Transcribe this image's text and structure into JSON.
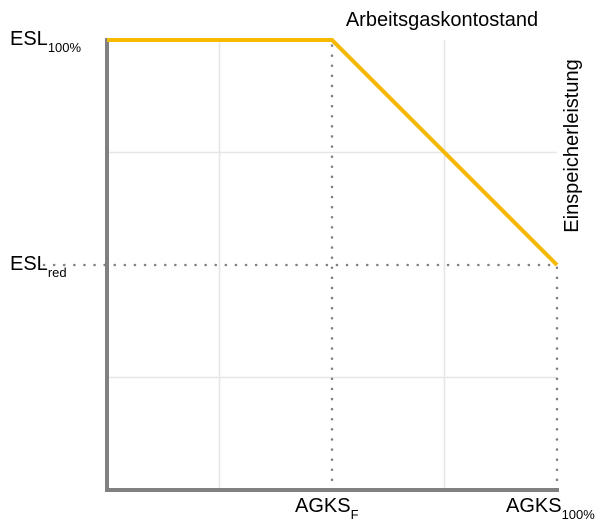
{
  "chart_data": {
    "type": "line",
    "title": "",
    "xlabel": "Arbeitsgaskontostand",
    "ylabel": "Einspeicherleistung",
    "x_ticks": [
      {
        "main": "AGKS",
        "sub": "F"
      },
      {
        "main": "AGKS",
        "sub": "100%"
      }
    ],
    "y_ticks": [
      {
        "main": "ESL",
        "sub": "100%"
      },
      {
        "main": "ESL",
        "sub": "red"
      }
    ],
    "xlim": [
      0,
      4
    ],
    "ylim": [
      0,
      4
    ],
    "series": [
      {
        "color": "#F6B800",
        "points": [
          [
            0,
            4
          ],
          [
            2,
            4
          ],
          [
            4,
            2
          ]
        ]
      }
    ],
    "reference_lines": [
      {
        "orientation": "vertical",
        "x": 2,
        "from_y": 0,
        "to_y": 4,
        "style": "dotted"
      },
      {
        "orientation": "vertical",
        "x": 4,
        "from_y": 0,
        "to_y": 2,
        "style": "dotted"
      },
      {
        "orientation": "horizontal",
        "y": 2,
        "from_x": 0,
        "to_x": 4,
        "style": "dotted"
      }
    ],
    "grid": true,
    "colors": {
      "line": "#F6B800",
      "axis": "#808080",
      "grid": "#e6e6e6",
      "reference": "#808080"
    }
  }
}
